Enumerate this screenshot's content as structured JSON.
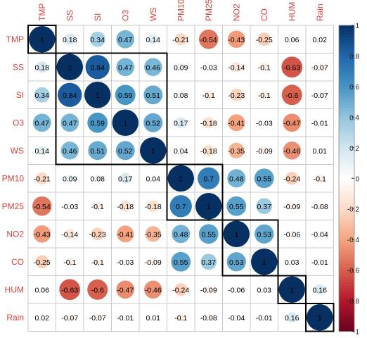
{
  "chart_data": {
    "type": "heatmap",
    "variables": [
      "TMP",
      "SS",
      "SI",
      "O3",
      "WS",
      "PM10",
      "PM25",
      "NO2",
      "CO",
      "HUM",
      "Rain"
    ],
    "matrix": [
      [
        1,
        0.18,
        0.34,
        0.47,
        0.14,
        -0.21,
        -0.54,
        -0.43,
        -0.25,
        0.06,
        0.02
      ],
      [
        0.18,
        1,
        0.84,
        0.47,
        0.46,
        0.09,
        -0.03,
        -0.14,
        -0.1,
        -0.63,
        -0.07
      ],
      [
        0.34,
        0.84,
        1,
        0.59,
        0.51,
        0.08,
        -0.1,
        -0.23,
        -0.1,
        -0.6,
        -0.07
      ],
      [
        0.47,
        0.47,
        0.59,
        1,
        0.52,
        0.17,
        -0.18,
        -0.41,
        -0.03,
        -0.47,
        -0.01
      ],
      [
        0.14,
        0.46,
        0.51,
        0.52,
        1,
        0.04,
        -0.18,
        -0.35,
        -0.09,
        -0.46,
        0.01
      ],
      [
        -0.21,
        0.09,
        0.08,
        0.17,
        0.04,
        1,
        0.7,
        0.48,
        0.55,
        -0.24,
        -0.1
      ],
      [
        -0.54,
        -0.03,
        -0.1,
        -0.18,
        -0.18,
        0.7,
        1,
        0.55,
        0.37,
        -0.09,
        -0.08
      ],
      [
        -0.43,
        -0.14,
        -0.23,
        -0.41,
        -0.35,
        0.48,
        0.55,
        1,
        0.53,
        -0.06,
        -0.04
      ],
      [
        -0.25,
        -0.1,
        -0.1,
        -0.03,
        -0.09,
        0.55,
        0.37,
        0.53,
        1,
        0.03,
        -0.01
      ],
      [
        0.06,
        -0.63,
        -0.6,
        -0.47,
        -0.46,
        -0.24,
        -0.09,
        -0.06,
        0.03,
        1,
        0.16
      ],
      [
        0.02,
        -0.07,
        -0.07,
        -0.01,
        0.01,
        -0.1,
        -0.08,
        -0.04,
        -0.01,
        0.16,
        1
      ]
    ],
    "clusters": [
      [
        "TMP"
      ],
      [
        "SS",
        "SI",
        "O3",
        "WS"
      ],
      [
        "PM10",
        "PM25"
      ],
      [
        "NO2",
        "CO"
      ],
      [
        "HUM"
      ],
      [
        "Rain"
      ]
    ],
    "colorbar": {
      "range": [
        -1,
        1
      ],
      "ticks": [
        "1",
        "0.8",
        "0.6",
        "0.4",
        "0.2",
        "0",
        "-0.2",
        "-0.4",
        "-0.6",
        "-0.8",
        "-1"
      ]
    },
    "label_color": "#d9403a",
    "grid": true,
    "legend_position": "right"
  }
}
